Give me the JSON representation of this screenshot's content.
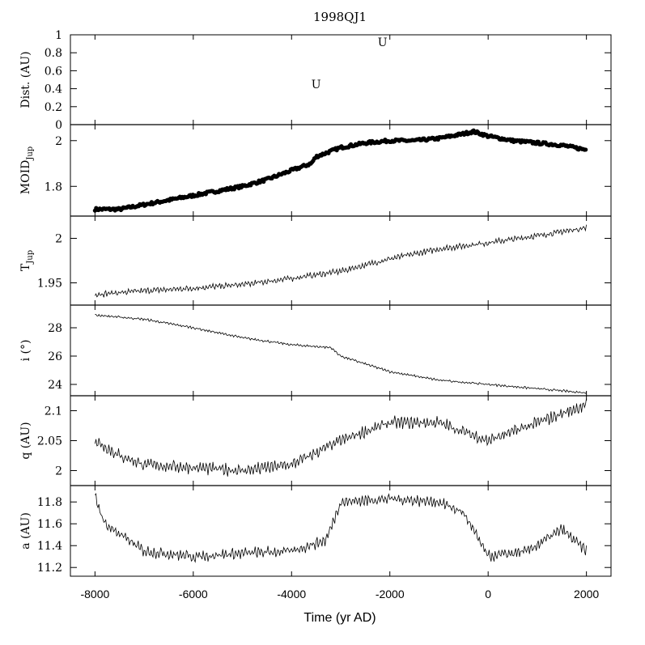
{
  "chart_data": {
    "type": "line",
    "title": "1998QJ1",
    "xlabel": "Time (yr AD)",
    "xlim": [
      -8500,
      2500
    ],
    "xticks": [
      -8000,
      -6000,
      -4000,
      -2000,
      0,
      2000
    ],
    "xtick_labels": [
      "-8000",
      "-6000",
      "-4000",
      "-2000",
      "0",
      "2000"
    ],
    "panels": [
      {
        "id": "dist",
        "ylabel": "Dist. (AU)",
        "plot": "markers",
        "ylim": [
          0,
          1
        ],
        "yticks": [
          0,
          0.2,
          0.4,
          0.6,
          0.8,
          1
        ],
        "ytick_labels": [
          "0",
          "0.2",
          "0.4",
          "0.6",
          "0.8",
          "1"
        ],
        "markers": [
          {
            "x": -3500,
            "y": 0.45,
            "label": "U"
          },
          {
            "x": -2150,
            "y": 0.92,
            "label": "U"
          }
        ]
      },
      {
        "id": "moid",
        "ylabel": "MOID",
        "ylabel_sub": "Jup",
        "plot": "dots",
        "ylim": [
          1.67,
          2.07
        ],
        "yticks": [
          1.8,
          2
        ],
        "ytick_labels": [
          "1.8",
          "2"
        ],
        "x": [
          -8000,
          -7500,
          -7000,
          -6500,
          -6000,
          -5500,
          -5000,
          -4500,
          -4000,
          -3600,
          -3500,
          -3000,
          -2500,
          -2000,
          -1500,
          -1000,
          -500,
          -300,
          0,
          500,
          1000,
          1500,
          2000
        ],
        "y": [
          1.7,
          1.7,
          1.72,
          1.74,
          1.76,
          1.78,
          1.8,
          1.83,
          1.87,
          1.9,
          1.93,
          1.97,
          1.99,
          2.0,
          2.0,
          2.01,
          2.03,
          2.04,
          2.02,
          2.0,
          1.99,
          1.98,
          1.96
        ],
        "noise": 0.006
      },
      {
        "id": "tjup",
        "ylabel": "T",
        "ylabel_sub": "Jup",
        "plot": "line",
        "ylim": [
          1.925,
          2.025
        ],
        "yticks": [
          1.95,
          2
        ],
        "ytick_labels": [
          "1.95",
          "2"
        ],
        "x": [
          -8000,
          -7000,
          -6000,
          -5000,
          -4000,
          -3000,
          -2000,
          -1000,
          0,
          1000,
          2000
        ],
        "y": [
          1.937,
          1.941,
          1.944,
          1.948,
          1.955,
          1.963,
          1.977,
          1.988,
          1.995,
          2.003,
          2.012
        ],
        "noise": 0.004
      },
      {
        "id": "incl",
        "ylabel": "i (°)",
        "plot": "line",
        "ylim": [
          23.2,
          29.6
        ],
        "yticks": [
          24,
          26,
          28
        ],
        "ytick_labels": [
          "24",
          "26",
          "28"
        ],
        "x": [
          -8000,
          -7000,
          -6000,
          -5000,
          -4000,
          -3200,
          -3000,
          -2000,
          -1000,
          0,
          1000,
          2000
        ],
        "y": [
          28.9,
          28.6,
          28.0,
          27.3,
          26.8,
          26.6,
          26.0,
          24.9,
          24.3,
          24.0,
          23.7,
          23.4
        ],
        "noise": 0.1
      },
      {
        "id": "q",
        "ylabel": "q (AU)",
        "plot": "line",
        "ylim": [
          1.975,
          2.125
        ],
        "yticks": [
          2,
          2.05,
          2.1
        ],
        "ytick_labels": [
          "2",
          "2.05",
          "2.1"
        ],
        "x": [
          -8000,
          -7500,
          -7000,
          -6000,
          -5000,
          -4000,
          -3000,
          -2000,
          -1000,
          0,
          1000,
          2000
        ],
        "y": [
          2.05,
          2.025,
          2.01,
          2.005,
          2.0,
          2.01,
          2.05,
          2.08,
          2.08,
          2.05,
          2.08,
          2.11
        ],
        "noise": 0.012
      },
      {
        "id": "a",
        "ylabel": "a (AU)",
        "plot": "line",
        "ylim": [
          11.12,
          11.95
        ],
        "yticks": [
          11.2,
          11.4,
          11.6,
          11.8
        ],
        "ytick_labels": [
          "11.2",
          "11.4",
          "11.6",
          "11.8"
        ],
        "x": [
          -8000,
          -7800,
          -7000,
          -6000,
          -5000,
          -4000,
          -3300,
          -3000,
          -2000,
          -1000,
          -500,
          0,
          800,
          1500,
          2000
        ],
        "y": [
          11.85,
          11.6,
          11.35,
          11.3,
          11.33,
          11.35,
          11.45,
          11.8,
          11.83,
          11.8,
          11.7,
          11.3,
          11.35,
          11.55,
          11.35
        ],
        "noise": 0.06
      }
    ]
  }
}
